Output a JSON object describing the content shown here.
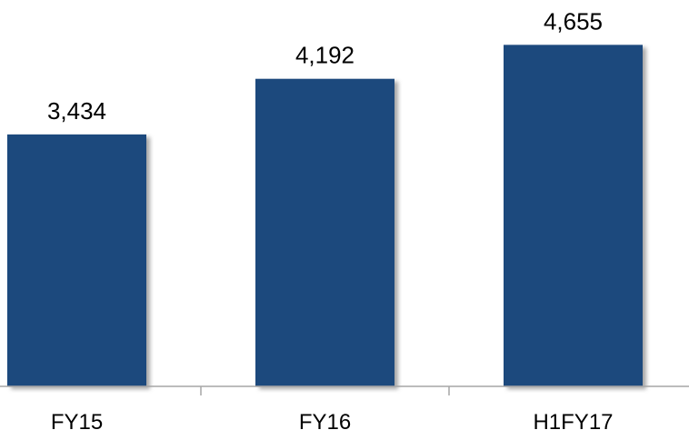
{
  "chart_data": {
    "type": "bar",
    "title": "",
    "xlabel": "",
    "ylabel": "",
    "categories": [
      "FY15",
      "FY16",
      "H1FY17"
    ],
    "values": [
      3434,
      4192,
      4655
    ],
    "value_labels": [
      "3,434",
      "4,192",
      "4,655"
    ],
    "ylim": [
      0,
      5700
    ],
    "grid": false,
    "legend": "none",
    "bar_color": "#1f497d"
  }
}
